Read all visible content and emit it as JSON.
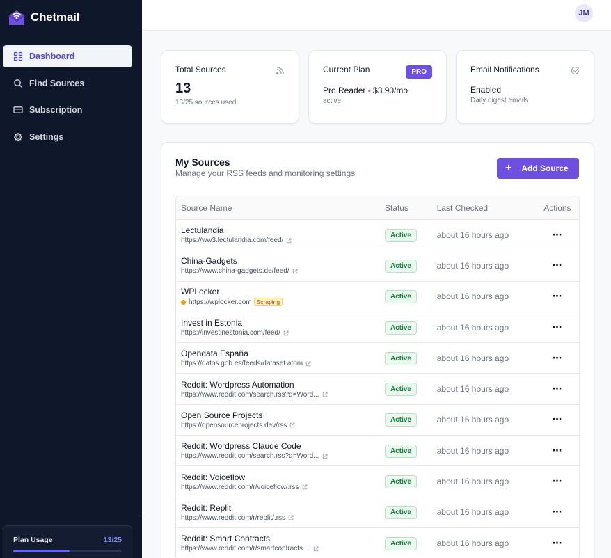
{
  "brand": {
    "name": "Chetmail"
  },
  "sidebar": {
    "items": [
      {
        "label": "Dashboard",
        "icon": "grid-icon",
        "active": true
      },
      {
        "label": "Find Sources",
        "icon": "search-icon",
        "active": false
      },
      {
        "label": "Subscription",
        "icon": "card-icon",
        "active": false
      },
      {
        "label": "Settings",
        "icon": "gear-icon",
        "active": false
      }
    ],
    "usage": {
      "label": "Plan Usage",
      "count": "13/25",
      "fraction": 0.52
    }
  },
  "header": {
    "avatar": "JM"
  },
  "stats": {
    "total": {
      "title": "Total Sources",
      "value": "13",
      "sub": "13/25 sources used",
      "icon": "rss-icon"
    },
    "plan": {
      "title": "Current Plan",
      "badge": "PRO",
      "value": "Pro Reader - $3.90/mo",
      "sub": "active"
    },
    "email": {
      "title": "Email Notifications",
      "value": "Enabled",
      "sub": "Daily digest emails",
      "icon": "check-circle-icon"
    }
  },
  "sources": {
    "title": "My Sources",
    "subtitle": "Manage your RSS feeds and monitoring settings",
    "add_label": "Add Source",
    "columns": {
      "name": "Source Name",
      "status": "Status",
      "last": "Last Checked",
      "actions": "Actions"
    },
    "rows": [
      {
        "name": "Lectulandia",
        "url": "https://ww3.lectulandia.com/feed/",
        "status": "Active",
        "last": "about 16 hours ago"
      },
      {
        "name": "China-Gadgets",
        "url": "https://www.china-gadgets.de/feed/",
        "status": "Active",
        "last": "about 16 hours ago"
      },
      {
        "name": "WPLocker",
        "url": "https://wplocker.com",
        "scraping": "Scraping",
        "status": "Active",
        "last": "about 16 hours ago"
      },
      {
        "name": "Invest in Estonia",
        "url": "https://investinestonia.com/feed/",
        "status": "Active",
        "last": "about 16 hours ago"
      },
      {
        "name": "Opendata España",
        "url": "https://datos.gob.es/feeds/dataset.atom",
        "status": "Active",
        "last": "about 16 hours ago"
      },
      {
        "name": "Reddit: Wordpress Automation",
        "url": "https://www.reddit.com/search.rss?q=Word...",
        "status": "Active",
        "last": "about 16 hours ago"
      },
      {
        "name": "Open Source Projects",
        "url": "https://opensourceprojects.dev/rss",
        "status": "Active",
        "last": "about 16 hours ago"
      },
      {
        "name": "Reddit: Wordpress Claude Code",
        "url": "https://www.reddit.com/search.rss?q=Word...",
        "status": "Active",
        "last": "about 16 hours ago"
      },
      {
        "name": "Reddit: Voiceflow",
        "url": "https://www.reddit.com/r/voiceflow/.rss",
        "status": "Active",
        "last": "about 16 hours ago"
      },
      {
        "name": "Reddit: Replit",
        "url": "https://www.reddit.com/r/replit/.rss",
        "status": "Active",
        "last": "about 16 hours ago"
      },
      {
        "name": "Reddit: Smart Contracts",
        "url": "https://www.reddit.com/r/smartcontracts....",
        "status": "Active",
        "last": "about 16 hours ago"
      }
    ]
  }
}
